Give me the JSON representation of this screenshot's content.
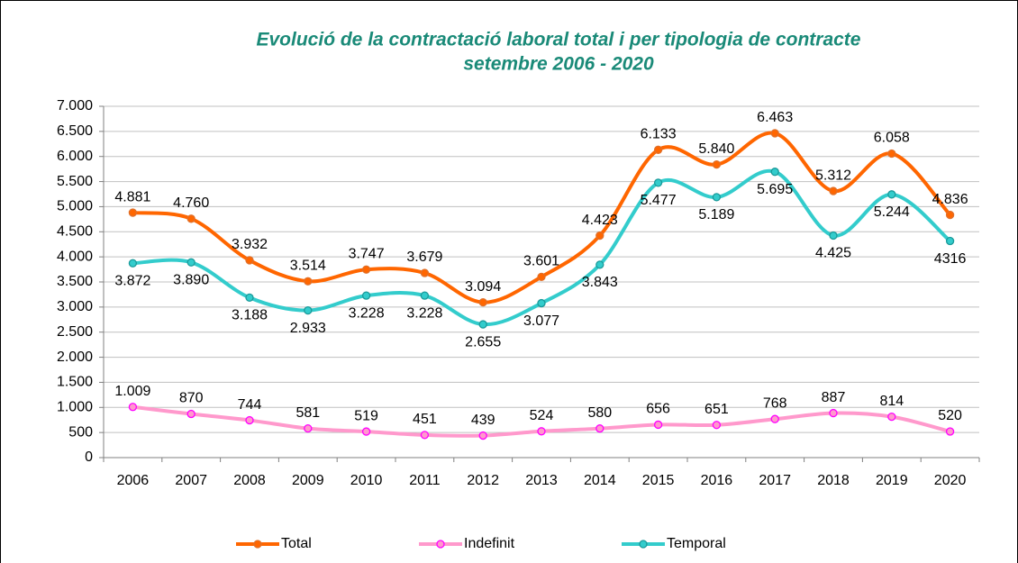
{
  "chart_data": {
    "type": "line",
    "title": "Evolució de la contractació laboral total i per tipologia de contracte",
    "subtitle": "setembre 2006 - 2020",
    "categories": [
      "2006",
      "2007",
      "2008",
      "2009",
      "2010",
      "2011",
      "2012",
      "2013",
      "2014",
      "2015",
      "2016",
      "2017",
      "2018",
      "2019",
      "2020"
    ],
    "series": [
      {
        "name": "Total",
        "color": "#ff6600",
        "marker_color": "#e0702a",
        "values": [
          4881,
          4760,
          3932,
          3514,
          3747,
          3679,
          3094,
          3601,
          4423,
          6133,
          5840,
          6463,
          5312,
          6058,
          4836
        ],
        "value_labels": [
          "4.881",
          "4.760",
          "3.932",
          "3.514",
          "3.747",
          "3.679",
          "3.094",
          "3.601",
          "4.423",
          "6.133",
          "5.840",
          "6.463",
          "5.312",
          "6.058",
          "4.836"
        ]
      },
      {
        "name": "Indefinit",
        "color": "#ff99cc",
        "marker_color": "#ff00ff",
        "values": [
          1009,
          870,
          744,
          581,
          519,
          451,
          439,
          524,
          580,
          656,
          651,
          768,
          887,
          814,
          520
        ],
        "value_labels": [
          "1.009",
          "870",
          "744",
          "581",
          "519",
          "451",
          "439",
          "524",
          "580",
          "656",
          "651",
          "768",
          "887",
          "814",
          "520"
        ]
      },
      {
        "name": "Temporal",
        "color": "#33cccc",
        "marker_color": "#1a9a9a",
        "values": [
          3872,
          3890,
          3188,
          2933,
          3228,
          3228,
          2655,
          3077,
          3843,
          5477,
          5189,
          5695,
          4425,
          5244,
          4316
        ],
        "value_labels": [
          "3.872",
          "3.890",
          "3.188",
          "2.933",
          "3.228",
          "3.228",
          "2.655",
          "3.077",
          "3.843",
          "5.477",
          "5.189",
          "5.695",
          "4.425",
          "5.244",
          "4316"
        ]
      }
    ],
    "ylim": [
      0,
      7000
    ],
    "yticks": [
      0,
      500,
      {
        "value": 1000,
        "label": "1.000"
      },
      {
        "value": 1500,
        "label": "1.500"
      },
      {
        "value": 2000,
        "label": "2.000"
      },
      {
        "value": 2500,
        "label": "2.500"
      },
      {
        "value": 3000,
        "label": "3.000"
      },
      {
        "value": 3500,
        "label": "3.500"
      },
      {
        "value": 4000,
        "label": "4.000"
      },
      {
        "value": 4500,
        "label": "4.500"
      },
      {
        "value": 5000,
        "label": "5.000"
      },
      {
        "value": 5500,
        "label": "5.500"
      },
      {
        "value": 6000,
        "label": "6.000"
      },
      {
        "value": 6500,
        "label": "6.500"
      },
      {
        "value": 7000,
        "label": "7.000"
      }
    ],
    "grid": true,
    "legend": "bottom"
  }
}
